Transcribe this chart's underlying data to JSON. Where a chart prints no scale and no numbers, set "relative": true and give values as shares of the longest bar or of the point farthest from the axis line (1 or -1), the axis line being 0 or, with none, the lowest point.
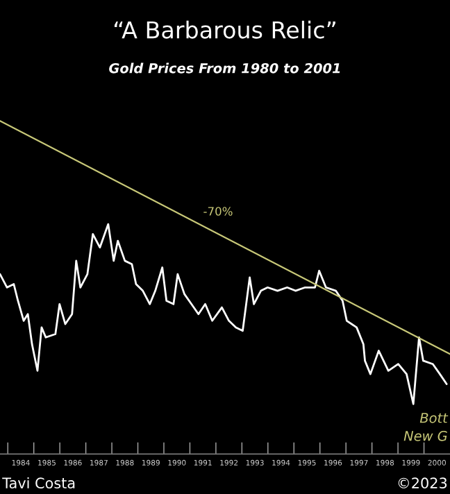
{
  "chart_data": {
    "type": "line",
    "title": "“A Barbarous Relic”",
    "subtitle": "Gold Prices From 1980 to 2001",
    "relative": true,
    "xlim": [
      1983.7,
      2001.0
    ],
    "xticks": [
      {
        "value": 1984.5,
        "label": "1984"
      },
      {
        "value": 1985.5,
        "label": "1985"
      },
      {
        "value": 1986.5,
        "label": "1986"
      },
      {
        "value": 1987.5,
        "label": "1987"
      },
      {
        "value": 1988.5,
        "label": "1988"
      },
      {
        "value": 1989.5,
        "label": "1989"
      },
      {
        "value": 1990.5,
        "label": "1990"
      },
      {
        "value": 1991.5,
        "label": "1991"
      },
      {
        "value": 1992.5,
        "label": "1992"
      },
      {
        "value": 1993.5,
        "label": "1993"
      },
      {
        "value": 1994.5,
        "label": "1994"
      },
      {
        "value": 1995.5,
        "label": "1995"
      },
      {
        "value": 1996.5,
        "label": "1996"
      },
      {
        "value": 1997.5,
        "label": "1997"
      },
      {
        "value": 1998.5,
        "label": "1998"
      },
      {
        "value": 1999.5,
        "label": "1999"
      },
      {
        "value": 2000.5,
        "label": "2000"
      }
    ],
    "tick_labels": "x",
    "grid": false,
    "legend": false,
    "marker": "none",
    "line_style": "solid",
    "series": [
      {
        "color": "#ffffff",
        "x": [
          1983.7,
          1983.97,
          1984.23,
          1984.39,
          1984.61,
          1984.77,
          1984.93,
          1985.14,
          1985.3,
          1985.46,
          1985.83,
          1985.99,
          1986.21,
          1986.47,
          1986.63,
          1986.79,
          1987.06,
          1987.27,
          1987.54,
          1987.86,
          1988.07,
          1988.23,
          1988.5,
          1988.77,
          1988.93,
          1989.19,
          1989.46,
          1989.67,
          1989.94,
          1990.1,
          1990.37,
          1990.53,
          1990.79,
          1991.06,
          1991.33,
          1991.59,
          1991.86,
          1992.23,
          1992.5,
          1992.77,
          1993.03,
          1993.3,
          1993.46,
          1993.73,
          1993.99,
          1994.37,
          1994.74,
          1995.06,
          1995.43,
          1995.81,
          1995.97,
          1996.23,
          1996.61,
          1996.87,
          1997.03,
          1997.41,
          1997.67,
          1997.73,
          1997.94,
          1998.26,
          1998.63,
          1999.01,
          1999.33,
          1999.59,
          1999.81,
          1999.97,
          2000.34,
          2000.61,
          2000.87
        ],
        "values": [
          0.54,
          0.5,
          0.51,
          0.46,
          0.4,
          0.42,
          0.33,
          0.25,
          0.38,
          0.35,
          0.36,
          0.45,
          0.39,
          0.42,
          0.58,
          0.5,
          0.54,
          0.66,
          0.62,
          0.69,
          0.58,
          0.64,
          0.58,
          0.57,
          0.51,
          0.49,
          0.45,
          0.49,
          0.56,
          0.46,
          0.45,
          0.54,
          0.48,
          0.45,
          0.42,
          0.45,
          0.4,
          0.44,
          0.4,
          0.38,
          0.37,
          0.53,
          0.45,
          0.49,
          0.5,
          0.49,
          0.5,
          0.49,
          0.5,
          0.5,
          0.55,
          0.5,
          0.49,
          0.46,
          0.4,
          0.38,
          0.33,
          0.28,
          0.24,
          0.31,
          0.25,
          0.27,
          0.24,
          0.15,
          0.35,
          0.28,
          0.27,
          0.24,
          0.21
        ]
      },
      {
        "color": "#c8c878",
        "x": [
          1983.7,
          2001.0
        ],
        "values": [
          1.0,
          0.3
        ]
      }
    ],
    "annotations": [
      "-70%",
      "Bott",
      "New G",
      "Tavi Costa",
      "©2023"
    ]
  }
}
